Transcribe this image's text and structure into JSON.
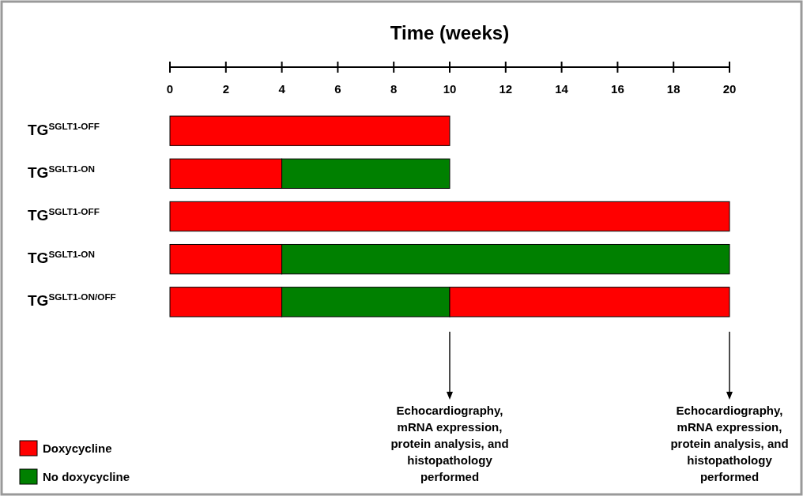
{
  "chart_data": {
    "type": "bar",
    "orientation": "horizontal",
    "stacked": true,
    "xlabel": "Time (weeks)",
    "categories": [
      "TG$^{SGLT1-OFF}$",
      "TG$^{SGLT1-ON}$",
      "TG$^{SGLT1-OFF}$",
      "TG$^{SGLT1-ON}$",
      "TG$^{SGLT1-ON/OFF}$"
    ],
    "series": [
      {
        "name": "Doxycycline",
        "color": "#ff0000",
        "values": [
          10,
          4,
          20,
          4,
          4
        ]
      },
      {
        "name": "No doxycycline",
        "color": "#008000",
        "values": [
          null,
          6,
          null,
          16,
          6
        ]
      },
      {
        "color": "#ff0000",
        "values": [
          null,
          null,
          null,
          null,
          10
        ]
      }
    ],
    "xlim": [
      0,
      20
    ],
    "xticks": [
      0,
      2,
      4,
      6,
      8,
      10,
      12,
      14,
      16,
      18,
      20
    ],
    "grid": false,
    "legend": "bottom left",
    "annotations": [
      "Echocardiography,\nmRNA expression,\nprotein analysis, and\nhistopathology\nperformed",
      "Echocardiography,\nmRNA expression,\nprotein analysis, and\nhistopathology\nperformed"
    ]
  }
}
